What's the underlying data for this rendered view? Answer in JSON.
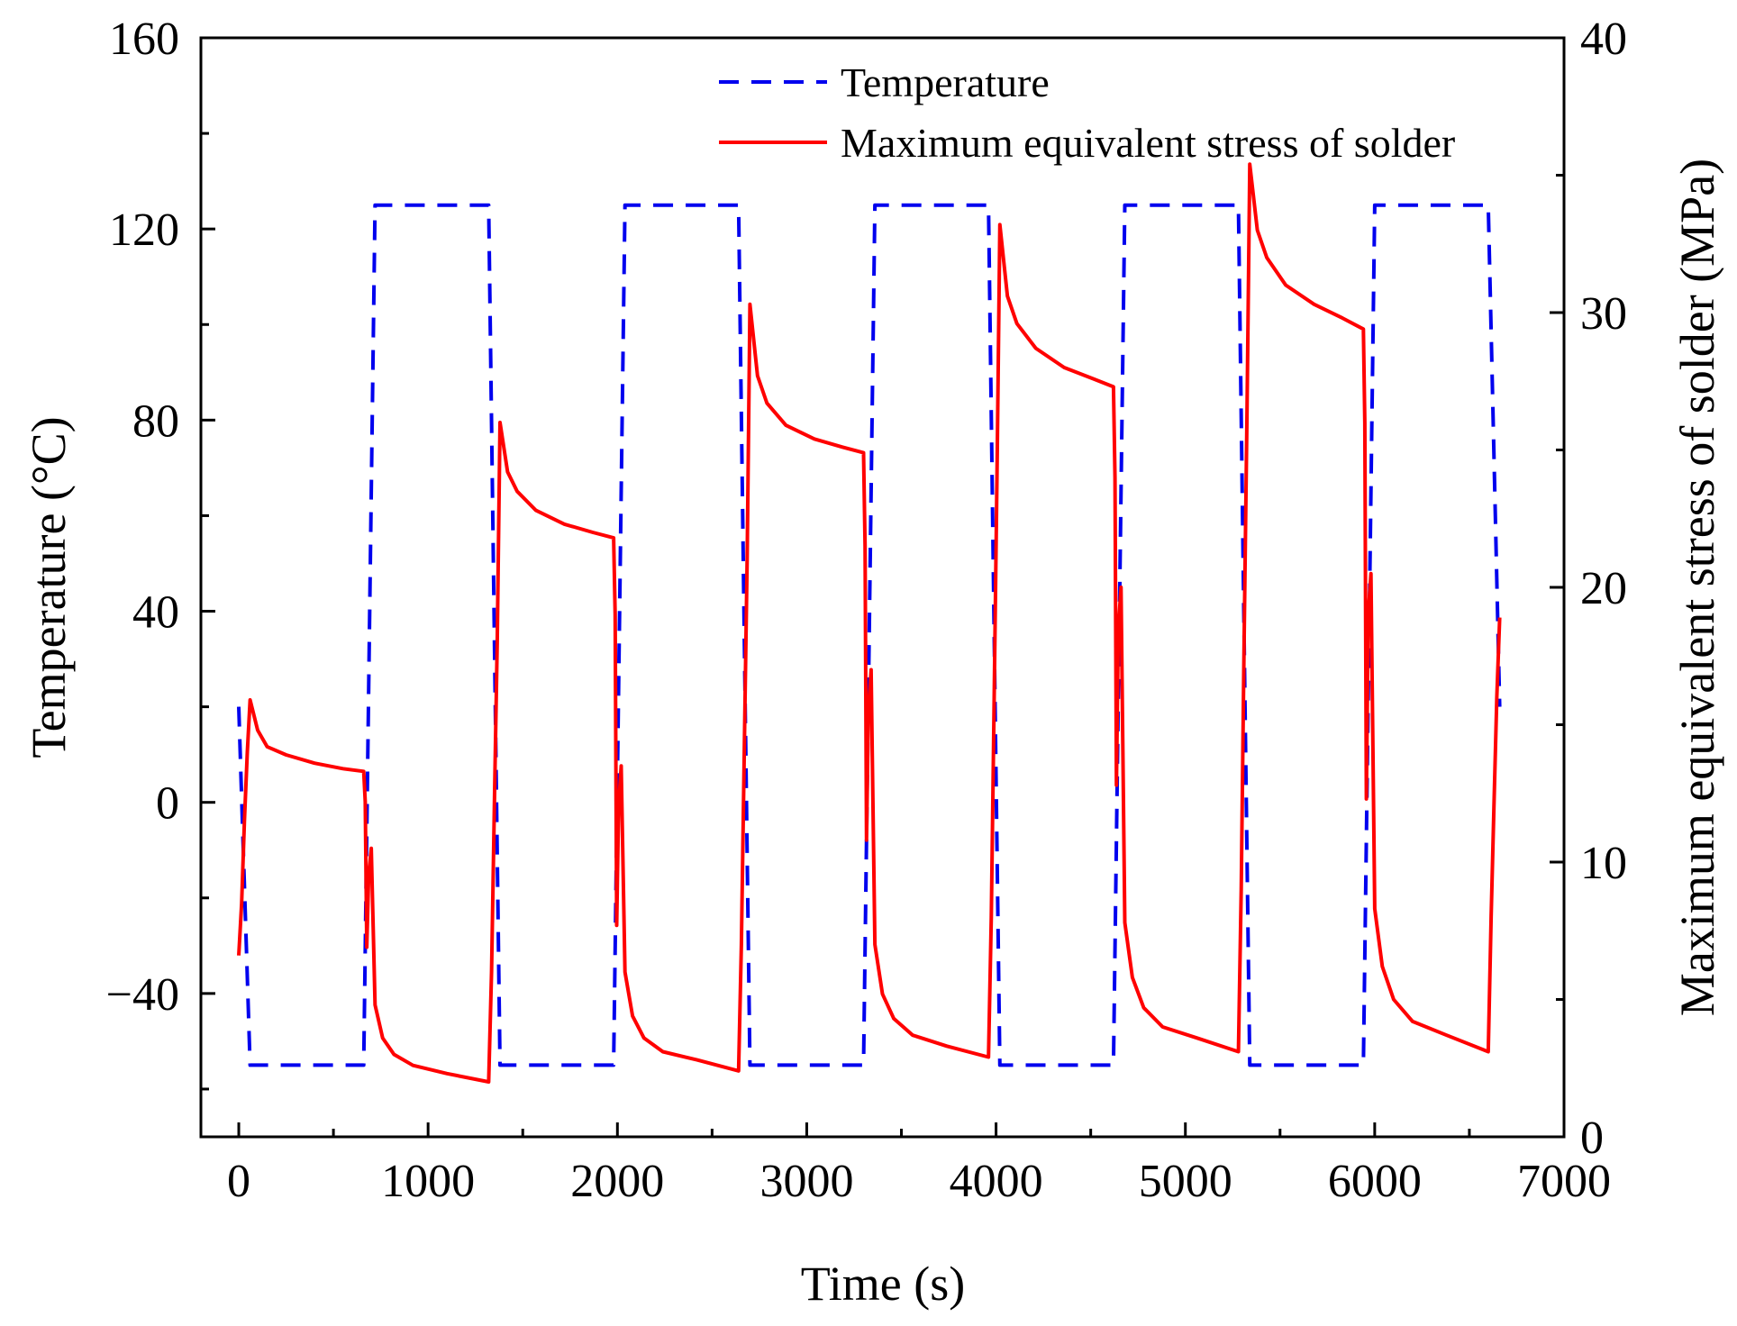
{
  "chart_data": {
    "type": "line",
    "title": "",
    "xlabel": "Time (s)",
    "ylabel_left": "Temperature (°C)",
    "ylabel_right": "Maximum equivalent stress of solder (MPa)",
    "xlim": [
      -200,
      7000
    ],
    "ylim_left": [
      -70,
      160
    ],
    "ylim_right": [
      0,
      40
    ],
    "x_ticks": [
      0,
      1000,
      2000,
      3000,
      4000,
      5000,
      6000,
      7000
    ],
    "x_tick_labels": [
      "0",
      "1000",
      "2000",
      "3000",
      "4000",
      "5000",
      "6000",
      "7000"
    ],
    "y_left_ticks": [
      -40,
      0,
      40,
      80,
      120,
      160
    ],
    "y_left_tick_labels": [
      "−40",
      "0",
      "40",
      "80",
      "120",
      "160"
    ],
    "y_right_ticks": [
      0,
      10,
      20,
      30,
      40
    ],
    "y_right_tick_labels": [
      "0",
      "10",
      "20",
      "30",
      "40"
    ],
    "legend_position": "top-center",
    "grid": false,
    "series": [
      {
        "name": "Temperature",
        "axis": "left",
        "style": "dashed",
        "color": "#0000ee",
        "x": [
          0,
          60,
          660,
          720,
          1320,
          1380,
          1980,
          2040,
          2640,
          2700,
          3300,
          3360,
          3960,
          4020,
          4620,
          4680,
          5280,
          5340,
          5940,
          6000,
          6600,
          6660
        ],
        "y": [
          20,
          -55,
          -55,
          125,
          125,
          -55,
          -55,
          125,
          125,
          -55,
          -55,
          125,
          125,
          -55,
          -55,
          125,
          125,
          -55,
          -55,
          125,
          125,
          20
        ]
      },
      {
        "name": "Maximum equivalent stress of solder",
        "axis": "right",
        "style": "solid",
        "color": "#ff0000",
        "x": [
          0,
          15,
          30,
          45,
          60,
          100,
          150,
          250,
          400,
          550,
          660,
          668,
          676,
          686,
          700,
          720,
          760,
          820,
          920,
          1100,
          1320,
          1335,
          1350,
          1365,
          1380,
          1420,
          1470,
          1570,
          1720,
          1870,
          1980,
          1988,
          1996,
          2006,
          2020,
          2040,
          2080,
          2140,
          2240,
          2420,
          2640,
          2655,
          2670,
          2685,
          2700,
          2740,
          2790,
          2890,
          3040,
          3190,
          3300,
          3308,
          3316,
          3326,
          3340,
          3360,
          3400,
          3460,
          3560,
          3740,
          3960,
          3975,
          3990,
          4005,
          4020,
          4060,
          4110,
          4210,
          4360,
          4510,
          4620,
          4628,
          4636,
          4646,
          4660,
          4680,
          4720,
          4780,
          4880,
          5060,
          5280,
          5295,
          5310,
          5325,
          5340,
          5380,
          5430,
          5530,
          5680,
          5830,
          5940,
          5948,
          5956,
          5966,
          5980,
          6000,
          6040,
          6100,
          6200,
          6380,
          6600,
          6615,
          6630,
          6645,
          6660
        ],
        "y": [
          6.6,
          8.5,
          11.5,
          14.0,
          15.9,
          14.8,
          14.2,
          13.9,
          13.6,
          13.4,
          13.3,
          12.2,
          6.9,
          9.5,
          10.5,
          4.8,
          3.6,
          3.0,
          2.6,
          2.3,
          2.0,
          6.0,
          12.0,
          18.0,
          26.0,
          24.2,
          23.5,
          22.8,
          22.3,
          22.0,
          21.8,
          19.0,
          7.7,
          12.0,
          13.5,
          6.0,
          4.4,
          3.6,
          3.1,
          2.8,
          2.4,
          7.0,
          14.0,
          21.0,
          30.3,
          27.7,
          26.7,
          25.9,
          25.4,
          25.1,
          24.9,
          21.5,
          10.8,
          15.5,
          17.0,
          7.0,
          5.2,
          4.3,
          3.7,
          3.3,
          2.9,
          8.0,
          16.0,
          24.0,
          33.2,
          30.6,
          29.6,
          28.7,
          28.0,
          27.6,
          27.3,
          24.0,
          12.8,
          18.5,
          20.0,
          7.8,
          5.8,
          4.7,
          4.0,
          3.6,
          3.1,
          9.0,
          18.0,
          26.0,
          35.4,
          33.0,
          32.0,
          31.0,
          30.3,
          29.8,
          29.4,
          26.0,
          12.3,
          19.0,
          20.5,
          8.3,
          6.2,
          5.0,
          4.2,
          3.7,
          3.1,
          8.0,
          12.0,
          16.0,
          18.9
        ]
      }
    ]
  }
}
